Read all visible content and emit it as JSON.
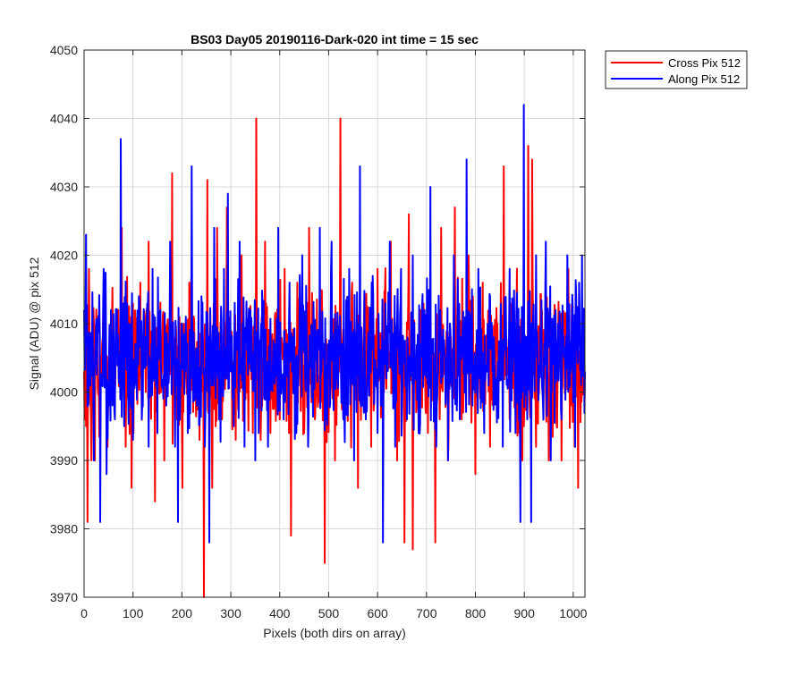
{
  "chart_data": {
    "type": "line",
    "title": "BS03 Day05 20190116-Dark-020 int time = 15 sec",
    "xlabel": "Pixels (both dirs on array)",
    "ylabel": "Signal (ADU) @ pix 512",
    "xlim": [
      0,
      1024
    ],
    "ylim": [
      3970,
      4050
    ],
    "xticks": [
      "0",
      "100",
      "200",
      "300",
      "400",
      "500",
      "600",
      "700",
      "800",
      "900",
      "1000"
    ],
    "yticks": [
      "3970",
      "3980",
      "3990",
      "4000",
      "4010",
      "4020",
      "4030",
      "4040",
      "4050"
    ],
    "grid": true,
    "legend_position": "top-right outside plot",
    "series": [
      {
        "name": "Cross Pix 512",
        "color": "#ff0000",
        "baseline": 4005,
        "points": [
          [
            0,
            4003
          ],
          [
            4,
            3995
          ],
          [
            7,
            3981
          ],
          [
            10,
            4018
          ],
          [
            15,
            3990
          ],
          [
            20,
            4010
          ],
          [
            22,
            3990
          ],
          [
            27,
            4006
          ],
          [
            33,
            4000
          ],
          [
            40,
            4014
          ],
          [
            48,
            3992
          ],
          [
            55,
            4010
          ],
          [
            62,
            4000
          ],
          [
            70,
            4012
          ],
          [
            77,
            4024
          ],
          [
            85,
            3992
          ],
          [
            90,
            4008
          ],
          [
            97,
            3986
          ],
          [
            105,
            4010
          ],
          [
            115,
            4016
          ],
          [
            126,
            4000
          ],
          [
            132,
            4022
          ],
          [
            145,
            3984
          ],
          [
            152,
            4010
          ],
          [
            164,
            3990
          ],
          [
            180,
            4032
          ],
          [
            190,
            3996
          ],
          [
            201,
            3986
          ],
          [
            215,
            4016
          ],
          [
            228,
            4003
          ],
          [
            236,
            3993
          ],
          [
            245,
            3970
          ],
          [
            252,
            4031
          ],
          [
            262,
            3986
          ],
          [
            272,
            4024
          ],
          [
            282,
            3996
          ],
          [
            292,
            4027
          ],
          [
            300,
            4008
          ],
          [
            310,
            3993
          ],
          [
            322,
            4020
          ],
          [
            335,
            4002
          ],
          [
            345,
            3994
          ],
          [
            352,
            4040
          ],
          [
            361,
            3993
          ],
          [
            370,
            4022
          ],
          [
            381,
            3994
          ],
          [
            390,
            4011
          ],
          [
            400,
            3996
          ],
          [
            410,
            4018
          ],
          [
            419,
            3994
          ],
          [
            423,
            3979
          ],
          [
            436,
            4016
          ],
          [
            450,
            3994
          ],
          [
            460,
            4024
          ],
          [
            472,
            3996
          ],
          [
            487,
            4010
          ],
          [
            492,
            3975
          ],
          [
            505,
            4018
          ],
          [
            513,
            3990
          ],
          [
            524,
            4040
          ],
          [
            534,
            4000
          ],
          [
            548,
            4016
          ],
          [
            560,
            3986
          ],
          [
            573,
            4014
          ],
          [
            587,
            3992
          ],
          [
            600,
            4018
          ],
          [
            613,
            4000
          ],
          [
            627,
            4022
          ],
          [
            640,
            3990
          ],
          [
            655,
            3978
          ],
          [
            664,
            4026
          ],
          [
            672,
            3977
          ],
          [
            688,
            4012
          ],
          [
            703,
            3994
          ],
          [
            718,
            3978
          ],
          [
            730,
            4024
          ],
          [
            744,
            3990
          ],
          [
            758,
            4027
          ],
          [
            772,
            3996
          ],
          [
            786,
            4020
          ],
          [
            800,
            3988
          ],
          [
            815,
            4016
          ],
          [
            830,
            3992
          ],
          [
            845,
            4010
          ],
          [
            858,
            4033
          ],
          [
            870,
            3996
          ],
          [
            884,
            4012
          ],
          [
            896,
            3990
          ],
          [
            908,
            4036
          ],
          [
            916,
            4034
          ],
          [
            924,
            3992
          ],
          [
            936,
            4012
          ],
          [
            950,
            3990
          ],
          [
            964,
            4010
          ],
          [
            976,
            3990
          ],
          [
            990,
            4018
          ],
          [
            1003,
            3992
          ],
          [
            1010,
            3986
          ],
          [
            1016,
            4005
          ],
          [
            1022,
            4012
          ]
        ]
      },
      {
        "name": "Along Pix 512",
        "color": "#0000ff",
        "baseline": 4005,
        "points": [
          [
            0,
            4012
          ],
          [
            4,
            4023
          ],
          [
            8,
            3998
          ],
          [
            12,
            4006
          ],
          [
            20,
            3990
          ],
          [
            28,
            4010
          ],
          [
            33,
            3981
          ],
          [
            40,
            4018
          ],
          [
            46,
            3988
          ],
          [
            55,
            4012
          ],
          [
            63,
            3996
          ],
          [
            70,
            4006
          ],
          [
            75,
            4037
          ],
          [
            82,
            3995
          ],
          [
            92,
            4010
          ],
          [
            100,
            3993
          ],
          [
            112,
            4014
          ],
          [
            118,
            3996
          ],
          [
            125,
            4008
          ],
          [
            132,
            3992
          ],
          [
            140,
            4018
          ],
          [
            150,
            3994
          ],
          [
            156,
            4012
          ],
          [
            168,
            3998
          ],
          [
            176,
            4022
          ],
          [
            186,
            3992
          ],
          [
            192,
            3981
          ],
          [
            200,
            4010
          ],
          [
            212,
            3994
          ],
          [
            220,
            4033
          ],
          [
            231,
            3998
          ],
          [
            240,
            4014
          ],
          [
            247,
            3992
          ],
          [
            256,
            3978
          ],
          [
            266,
            4024
          ],
          [
            276,
            3996
          ],
          [
            286,
            4018
          ],
          [
            294,
            4029
          ],
          [
            306,
            3995
          ],
          [
            318,
            4022
          ],
          [
            328,
            3992
          ],
          [
            340,
            4012
          ],
          [
            350,
            3990
          ],
          [
            362,
            4010
          ],
          [
            376,
            3992
          ],
          [
            388,
            4006
          ],
          [
            397,
            4024
          ],
          [
            408,
            3996
          ],
          [
            420,
            4016
          ],
          [
            434,
            3994
          ],
          [
            446,
            4020
          ],
          [
            458,
            3992
          ],
          [
            470,
            4006
          ],
          [
            482,
            4024
          ],
          [
            494,
            3996
          ],
          [
            506,
            4022
          ],
          [
            520,
            4004
          ],
          [
            530,
            3996
          ],
          [
            542,
            4018
          ],
          [
            552,
            3990
          ],
          [
            564,
            4033
          ],
          [
            576,
            3996
          ],
          [
            588,
            4016
          ],
          [
            600,
            3994
          ],
          [
            611,
            3978
          ],
          [
            625,
            4022
          ],
          [
            636,
            3992
          ],
          [
            648,
            4018
          ],
          [
            660,
            3996
          ],
          [
            672,
            4020
          ],
          [
            684,
            3994
          ],
          [
            696,
            4012
          ],
          [
            708,
            4030
          ],
          [
            720,
            3992
          ],
          [
            732,
            4008
          ],
          [
            744,
            3990
          ],
          [
            756,
            4020
          ],
          [
            768,
            3996
          ],
          [
            782,
            4034
          ],
          [
            794,
            3998
          ],
          [
            806,
            4018
          ],
          [
            818,
            3994
          ],
          [
            830,
            4014
          ],
          [
            842,
            4002
          ],
          [
            856,
            3992
          ],
          [
            870,
            4018
          ],
          [
            882,
            3994
          ],
          [
            892,
            3981
          ],
          [
            899,
            4042
          ],
          [
            906,
            3996
          ],
          [
            914,
            3981
          ],
          [
            924,
            4020
          ],
          [
            934,
            4004
          ],
          [
            944,
            4022
          ],
          [
            954,
            3990
          ],
          [
            964,
            4012
          ],
          [
            976,
            3996
          ],
          [
            988,
            4020
          ],
          [
            996,
            4004
          ],
          [
            1004,
            3992
          ],
          [
            1012,
            4016
          ],
          [
            1018,
            4020
          ],
          [
            1024,
            4003
          ]
        ]
      }
    ]
  }
}
